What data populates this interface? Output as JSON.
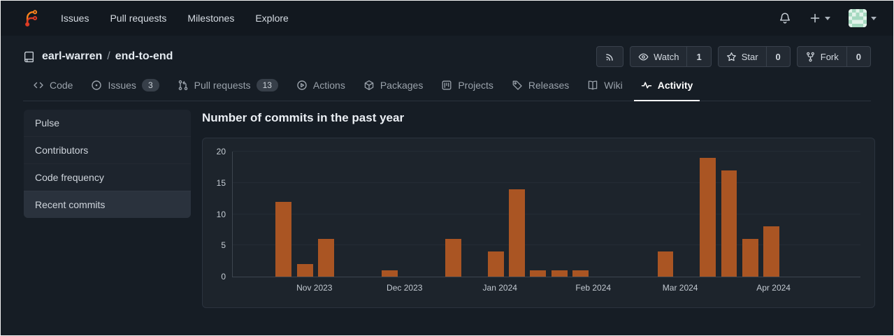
{
  "navbar": {
    "items": [
      {
        "label": "Issues"
      },
      {
        "label": "Pull requests"
      },
      {
        "label": "Milestones"
      },
      {
        "label": "Explore"
      }
    ]
  },
  "repo_header": {
    "owner": "earl-warren",
    "separator": "/",
    "name": "end-to-end",
    "actions": {
      "watch": {
        "label": "Watch",
        "count": "1"
      },
      "star": {
        "label": "Star",
        "count": "0"
      },
      "fork": {
        "label": "Fork",
        "count": "0"
      }
    }
  },
  "tabs": [
    {
      "label": "Code",
      "icon": "code-icon"
    },
    {
      "label": "Issues",
      "icon": "issue-opened-icon",
      "badge": "3"
    },
    {
      "label": "Pull requests",
      "icon": "git-pull-request-icon",
      "badge": "13"
    },
    {
      "label": "Actions",
      "icon": "play-circle-icon"
    },
    {
      "label": "Packages",
      "icon": "package-icon"
    },
    {
      "label": "Projects",
      "icon": "project-board-icon"
    },
    {
      "label": "Releases",
      "icon": "tag-icon"
    },
    {
      "label": "Wiki",
      "icon": "book-icon"
    },
    {
      "label": "Activity",
      "icon": "pulse-icon",
      "active": true
    }
  ],
  "sidebar": {
    "items": [
      {
        "label": "Pulse"
      },
      {
        "label": "Contributors"
      },
      {
        "label": "Code frequency"
      },
      {
        "label": "Recent commits",
        "active": true
      }
    ]
  },
  "main": {
    "section_title": "Number of commits in the past year"
  },
  "chart_data": {
    "type": "bar",
    "title": "Number of commits in the past year",
    "xlabel": "",
    "ylabel": "",
    "ylim": [
      0,
      20
    ],
    "yticks": [
      0,
      5,
      10,
      15,
      20
    ],
    "grid": true,
    "legend_position": "none",
    "bar_color": "#aa5523",
    "x_unit": "week",
    "x_range_weeks": 29.6,
    "bar_width_weeks": 0.75,
    "series": [
      {
        "name": "commits",
        "points": [
          {
            "week": 2.4,
            "value": 12
          },
          {
            "week": 3.4,
            "value": 2
          },
          {
            "week": 4.4,
            "value": 6
          },
          {
            "week": 7.4,
            "value": 1
          },
          {
            "week": 10.4,
            "value": 6
          },
          {
            "week": 12.4,
            "value": 4
          },
          {
            "week": 13.4,
            "value": 14
          },
          {
            "week": 14.4,
            "value": 1
          },
          {
            "week": 15.4,
            "value": 1
          },
          {
            "week": 16.4,
            "value": 1
          },
          {
            "week": 20.4,
            "value": 4
          },
          {
            "week": 22.4,
            "value": 19
          },
          {
            "week": 23.4,
            "value": 17
          },
          {
            "week": 24.4,
            "value": 6
          },
          {
            "week": 25.4,
            "value": 8
          }
        ]
      }
    ],
    "x_tick_labels": [
      {
        "label": "Nov 2023",
        "week": 3.85
      },
      {
        "label": "Dec 2023",
        "week": 8.1
      },
      {
        "label": "Jan 2024",
        "week": 12.6
      },
      {
        "label": "Feb 2024",
        "week": 17.0
      },
      {
        "label": "Mar 2024",
        "week": 21.1
      },
      {
        "label": "Apr 2024",
        "week": 25.5
      }
    ]
  }
}
